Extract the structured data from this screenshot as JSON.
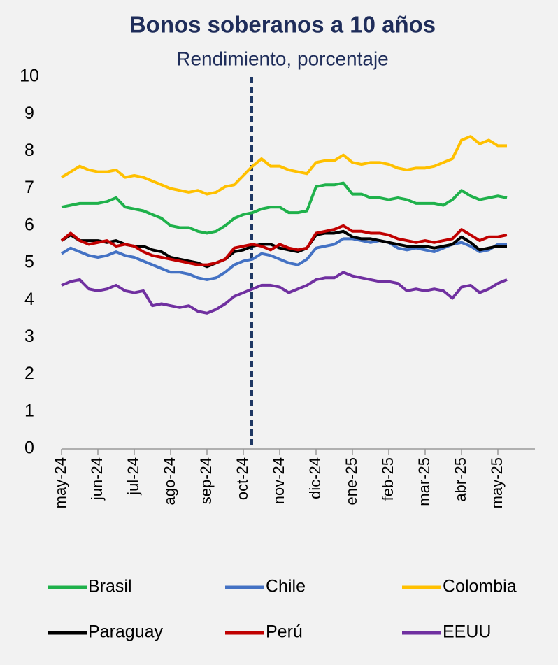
{
  "chart_data": {
    "type": "line",
    "title": "Bonos soberanos a 10 años",
    "subtitle": "Rendimiento, porcentaje",
    "categories": [
      "may-24",
      null,
      null,
      null,
      "jun-24",
      null,
      null,
      null,
      "jul-24",
      null,
      null,
      null,
      "ago-24",
      null,
      null,
      null,
      "sep-24",
      null,
      null,
      null,
      "oct-24",
      null,
      null,
      null,
      "nov-24",
      null,
      null,
      null,
      "dic-24",
      null,
      null,
      null,
      "ene-25",
      null,
      null,
      null,
      "feb-25",
      null,
      null,
      null,
      "mar-25",
      null,
      null,
      null,
      "abr-25",
      null,
      null,
      null,
      "may-25",
      null
    ],
    "ylim": [
      0,
      10
    ],
    "yticks": [
      0,
      1,
      2,
      3,
      4,
      5,
      6,
      7,
      8,
      9,
      10
    ],
    "grid": false,
    "legend": "bottom",
    "series": [
      {
        "name": "Brasil",
        "color": "#1fb14b",
        "values": [
          6.5,
          6.55,
          6.6,
          6.6,
          6.6,
          6.65,
          6.75,
          6.5,
          6.45,
          6.4,
          6.3,
          6.2,
          6.0,
          5.95,
          5.95,
          5.85,
          5.8,
          5.85,
          6.0,
          6.2,
          6.3,
          6.35,
          6.45,
          6.5,
          6.5,
          6.35,
          6.35,
          6.4,
          7.05,
          7.1,
          7.1,
          7.15,
          6.85,
          6.85,
          6.75,
          6.75,
          6.7,
          6.75,
          6.7,
          6.6,
          6.6,
          6.6,
          6.55,
          6.7,
          6.95,
          6.8,
          6.7,
          6.75,
          6.8,
          6.75
        ]
      },
      {
        "name": "Chile",
        "color": "#4472c4",
        "values": [
          5.25,
          5.4,
          5.3,
          5.2,
          5.15,
          5.2,
          5.3,
          5.2,
          5.15,
          5.05,
          4.95,
          4.85,
          4.75,
          4.75,
          4.7,
          4.6,
          4.55,
          4.6,
          4.75,
          4.95,
          5.05,
          5.1,
          5.25,
          5.2,
          5.1,
          5.0,
          4.95,
          5.1,
          5.4,
          5.45,
          5.5,
          5.65,
          5.65,
          5.6,
          5.55,
          5.6,
          5.55,
          5.4,
          5.35,
          5.4,
          5.35,
          5.3,
          5.4,
          5.5,
          5.55,
          5.45,
          5.3,
          5.35,
          5.5,
          5.5
        ]
      },
      {
        "name": "Colombia",
        "color": "#ffc000",
        "values": [
          7.3,
          7.45,
          7.6,
          7.5,
          7.45,
          7.45,
          7.5,
          7.3,
          7.35,
          7.3,
          7.2,
          7.1,
          7.0,
          6.95,
          6.9,
          6.95,
          6.85,
          6.9,
          7.05,
          7.1,
          7.35,
          7.6,
          7.8,
          7.6,
          7.6,
          7.5,
          7.45,
          7.4,
          7.7,
          7.75,
          7.75,
          7.9,
          7.7,
          7.65,
          7.7,
          7.7,
          7.65,
          7.55,
          7.5,
          7.55,
          7.55,
          7.6,
          7.7,
          7.8,
          8.3,
          8.4,
          8.2,
          8.3,
          8.15,
          8.15
        ]
      },
      {
        "name": "Paraguay",
        "color": "#000000",
        "values": [
          5.6,
          5.75,
          5.6,
          5.6,
          5.6,
          5.55,
          5.6,
          5.5,
          5.45,
          5.45,
          5.35,
          5.3,
          5.15,
          5.1,
          5.05,
          5.0,
          4.9,
          5.0,
          5.1,
          5.3,
          5.35,
          5.45,
          5.5,
          5.5,
          5.4,
          5.35,
          5.3,
          5.4,
          5.75,
          5.8,
          5.8,
          5.85,
          5.7,
          5.65,
          5.65,
          5.6,
          5.55,
          5.5,
          5.45,
          5.45,
          5.45,
          5.4,
          5.45,
          5.5,
          5.7,
          5.55,
          5.35,
          5.4,
          5.45,
          5.45
        ]
      },
      {
        "name": "Perú",
        "color": "#c00000",
        "values": [
          5.6,
          5.8,
          5.6,
          5.5,
          5.55,
          5.6,
          5.45,
          5.5,
          5.45,
          5.3,
          5.2,
          5.15,
          5.1,
          5.05,
          5.0,
          4.95,
          4.95,
          5.0,
          5.1,
          5.4,
          5.45,
          5.5,
          5.45,
          5.35,
          5.5,
          5.4,
          5.35,
          5.4,
          5.8,
          5.85,
          5.9,
          6.0,
          5.85,
          5.85,
          5.8,
          5.8,
          5.75,
          5.65,
          5.6,
          5.55,
          5.6,
          5.55,
          5.6,
          5.65,
          5.9,
          5.75,
          5.6,
          5.7,
          5.7,
          5.75
        ]
      },
      {
        "name": "EEUU",
        "color": "#7030a0",
        "values": [
          4.4,
          4.5,
          4.55,
          4.3,
          4.25,
          4.3,
          4.4,
          4.25,
          4.2,
          4.25,
          3.85,
          3.9,
          3.85,
          3.8,
          3.85,
          3.7,
          3.65,
          3.75,
          3.9,
          4.1,
          4.2,
          4.3,
          4.4,
          4.4,
          4.35,
          4.2,
          4.3,
          4.4,
          4.55,
          4.6,
          4.6,
          4.75,
          4.65,
          4.6,
          4.55,
          4.5,
          4.5,
          4.45,
          4.25,
          4.3,
          4.25,
          4.3,
          4.25,
          4.05,
          4.35,
          4.4,
          4.2,
          4.3,
          4.45,
          4.55
        ]
      }
    ]
  }
}
